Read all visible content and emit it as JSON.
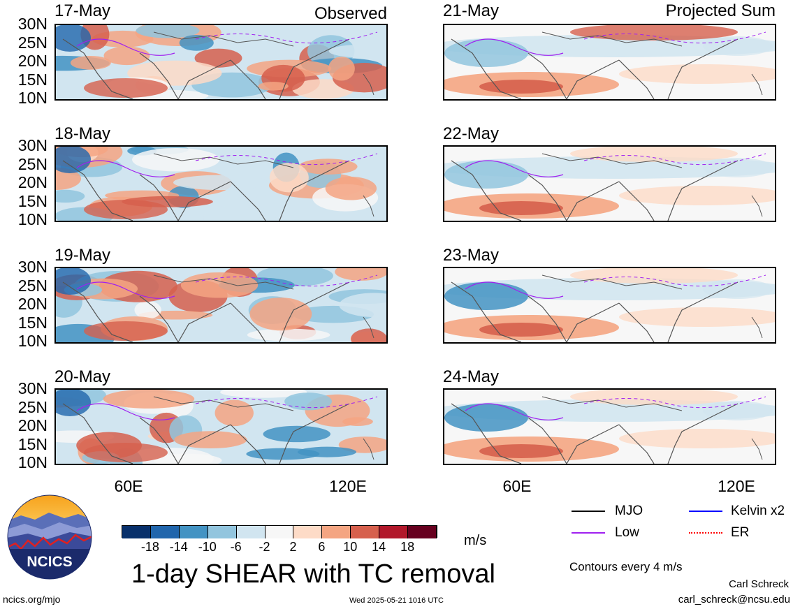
{
  "column_titles": {
    "left": "Observed",
    "right": "Projected Sum"
  },
  "panels": [
    {
      "date": "17-May",
      "column": "left"
    },
    {
      "date": "18-May",
      "column": "left"
    },
    {
      "date": "19-May",
      "column": "left"
    },
    {
      "date": "20-May",
      "column": "left"
    },
    {
      "date": "21-May",
      "column": "right"
    },
    {
      "date": "22-May",
      "column": "right"
    },
    {
      "date": "23-May",
      "column": "right"
    },
    {
      "date": "24-May",
      "column": "right"
    }
  ],
  "lat_labels": [
    "30N",
    "25N",
    "20N",
    "15N",
    "10N"
  ],
  "lon_labels": [
    "60E",
    "120E"
  ],
  "colorbar": {
    "colors": [
      "#08306b",
      "#2166ac",
      "#4393c3",
      "#92c5de",
      "#d1e5f0",
      "#f7f7f7",
      "#fddbc7",
      "#f4a582",
      "#d6604d",
      "#b2182b",
      "#67001f"
    ],
    "ticks": [
      "-18",
      "-14",
      "-10",
      "-6",
      "-2",
      "2",
      "6",
      "10",
      "14",
      "18"
    ],
    "unit": "m/s"
  },
  "main_title": "1-day SHEAR with TC removal",
  "legend": [
    {
      "label": "MJO",
      "color": "#000000",
      "style": "solid"
    },
    {
      "label": "Kelvin x2",
      "color": "#0000ff",
      "style": "solid"
    },
    {
      "label": "Low",
      "color": "#a020f0",
      "style": "solid"
    },
    {
      "label": "ER",
      "color": "#ff0000",
      "style": "dotted"
    }
  ],
  "contour_note": "Contours every 4 m/s",
  "logo_text": "NCICS",
  "footer": {
    "site": "ncics.org/mjo",
    "timestamp": "Wed 2025-05-21 1016 UTC",
    "author": "Carl Schreck",
    "email": "carl_schreck@ncsu.edu"
  },
  "chart_data": {
    "type": "heatmap",
    "title": "1-day SHEAR with TC removal",
    "unit": "m/s",
    "x_range": [
      "40E",
      "130E"
    ],
    "y_range": [
      "10N",
      "30N"
    ],
    "x_ticks": [
      "60E",
      "120E"
    ],
    "y_ticks": [
      "30N",
      "25N",
      "20N",
      "15N",
      "10N"
    ],
    "color_levels": [
      -18,
      -14,
      -10,
      -6,
      -2,
      2,
      6,
      10,
      14,
      18
    ],
    "series": [
      {
        "name": "Observed",
        "panels": [
          "17-May",
          "18-May",
          "19-May",
          "20-May"
        ]
      },
      {
        "name": "Projected Sum",
        "panels": [
          "21-May",
          "22-May",
          "23-May",
          "24-May"
        ]
      }
    ],
    "contour_interval": 4
  }
}
